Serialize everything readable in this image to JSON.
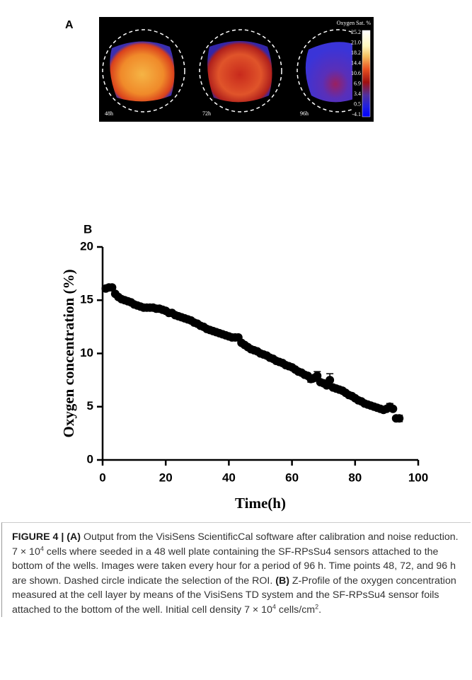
{
  "panel_a": {
    "label": "A",
    "colorbar_title": "Oxygen Sat. %",
    "colorbar_labels": [
      "25.2",
      "21.0",
      "18.2",
      "14.4",
      "10.6",
      "6.9",
      "3.4",
      "0.5",
      "-4.1"
    ],
    "wells": [
      "48h",
      "72h",
      "96h"
    ]
  },
  "chart_data": {
    "type": "scatter",
    "panel_label": "B",
    "x_label": "Time(h)",
    "y_label": "Oxygen concentration (%)",
    "xlim": [
      0,
      100
    ],
    "ylim": [
      0,
      20
    ],
    "xticks": [
      0,
      20,
      40,
      60,
      80,
      100
    ],
    "yticks": [
      0,
      5,
      10,
      15,
      20
    ],
    "color": "#000000",
    "x": [
      1,
      2,
      3,
      4,
      5,
      6,
      7,
      8,
      9,
      10,
      11,
      12,
      13,
      14,
      15,
      16,
      17,
      18,
      19,
      20,
      21,
      22,
      23,
      24,
      25,
      26,
      27,
      28,
      29,
      30,
      31,
      32,
      33,
      34,
      35,
      36,
      37,
      38,
      39,
      40,
      41,
      42,
      43,
      44,
      45,
      46,
      47,
      48,
      49,
      50,
      51,
      52,
      53,
      54,
      55,
      56,
      57,
      58,
      59,
      60,
      61,
      62,
      63,
      64,
      65,
      66,
      67,
      68,
      69,
      70,
      71,
      72,
      73,
      74,
      75,
      76,
      77,
      78,
      79,
      80,
      81,
      82,
      83,
      84,
      85,
      86,
      87,
      88,
      89,
      90,
      91,
      92,
      93,
      94
    ],
    "values": [
      16.1,
      16.2,
      16.2,
      15.6,
      15.3,
      15.1,
      15.0,
      14.9,
      14.8,
      14.6,
      14.5,
      14.4,
      14.3,
      14.3,
      14.3,
      14.3,
      14.2,
      14.2,
      14.1,
      14.0,
      13.8,
      13.8,
      13.6,
      13.5,
      13.4,
      13.3,
      13.2,
      13.1,
      12.9,
      12.8,
      12.6,
      12.5,
      12.3,
      12.2,
      12.1,
      12.0,
      11.9,
      11.8,
      11.7,
      11.6,
      11.5,
      11.5,
      11.5,
      11.0,
      10.8,
      10.6,
      10.4,
      10.3,
      10.2,
      10.0,
      9.9,
      9.8,
      9.6,
      9.5,
      9.3,
      9.2,
      9.1,
      8.9,
      8.8,
      8.7,
      8.5,
      8.3,
      8.2,
      8.0,
      7.9,
      7.6,
      7.7,
      7.9,
      7.3,
      7.2,
      7.0,
      7.5,
      6.8,
      6.7,
      6.6,
      6.5,
      6.3,
      6.1,
      6.0,
      5.8,
      5.6,
      5.5,
      5.3,
      5.2,
      5.1,
      5.0,
      4.9,
      4.8,
      4.7,
      4.8,
      5.0,
      4.8,
      3.9,
      3.9
    ],
    "errors": [
      null,
      null,
      null,
      null,
      null,
      null,
      null,
      null,
      null,
      null,
      null,
      null,
      null,
      null,
      null,
      null,
      null,
      null,
      null,
      null,
      null,
      null,
      null,
      null,
      null,
      null,
      null,
      null,
      null,
      null,
      null,
      null,
      null,
      null,
      null,
      null,
      null,
      null,
      null,
      null,
      null,
      null,
      null,
      null,
      null,
      null,
      null,
      null,
      null,
      null,
      null,
      null,
      null,
      null,
      null,
      null,
      null,
      null,
      null,
      null,
      null,
      null,
      null,
      null,
      null,
      0.3,
      null,
      0.4,
      null,
      null,
      null,
      0.6,
      null,
      null,
      null,
      null,
      null,
      null,
      null,
      null,
      null,
      null,
      null,
      null,
      null,
      null,
      null,
      null,
      null,
      null,
      0.3,
      null,
      null,
      0.3
    ]
  },
  "caption": [
    "FIGURE 4 | ",
    "(A)",
    " Output from the VisiSens ScientificCal software after calibration and noise reduction. 7 × 10",
    "4",
    " cells where seeded in a 48 well plate containing the SF-RPsSu4 sensors attached to the bottom of the wells. Images were taken every hour for a period of 96 h. Time points 48, 72, and 96 h are shown. Dashed circle indicate the selection of the ROI. ",
    "(B)",
    " Z-Profile of the oxygen concentration measured at the cell layer by means of the VisiSens TD system and the SF-RPsSu4 sensor foils attached to the bottom of the well. Initial cell density 7 × 10",
    "4",
    " cells/cm",
    "2",
    "."
  ]
}
